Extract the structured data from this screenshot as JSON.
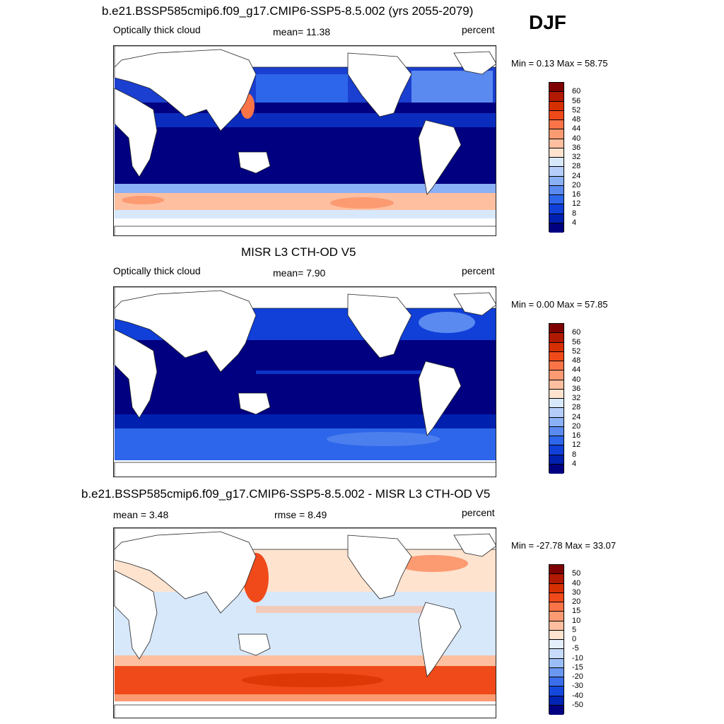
{
  "season": "DJF",
  "panels": [
    {
      "title": "b.e21.BSSP585cmip6.f09_g17.CMIP6-SSP5-8.5.002 (yrs 2055-2079)",
      "left_label": "Optically thick cloud",
      "center_label": "mean=  11.38",
      "right_label": "percent",
      "minmax": "Min =   0.13 Max =  58.75",
      "colorbar_ticks": [
        "60",
        "56",
        "52",
        "48",
        "44",
        "40",
        "36",
        "32",
        "28",
        "24",
        "20",
        "16",
        "12",
        "8",
        "4"
      ],
      "colorbar_colors": [
        "#7f0000",
        "#b11a00",
        "#d73000",
        "#f04a1a",
        "#fb7448",
        "#fc9a72",
        "#fdbf9f",
        "#fee3cf",
        "#d7e8fb",
        "#b4cdf9",
        "#8ab0f5",
        "#5a8af0",
        "#2d66ea",
        "#1040d8",
        "#0020b0",
        "#000080"
      ]
    },
    {
      "title": "MISR L3 CTH-OD V5",
      "left_label": "Optically thick cloud",
      "center_label": "mean=   7.90",
      "right_label": "percent",
      "minmax": "Min =   0.00 Max =  57.85",
      "colorbar_ticks": [
        "60",
        "56",
        "52",
        "48",
        "44",
        "40",
        "36",
        "32",
        "28",
        "24",
        "20",
        "16",
        "12",
        "8",
        "4"
      ],
      "colorbar_colors": [
        "#7f0000",
        "#b11a00",
        "#d73000",
        "#f04a1a",
        "#fb7448",
        "#fc9a72",
        "#fdbf9f",
        "#fee3cf",
        "#d7e8fb",
        "#b4cdf9",
        "#8ab0f5",
        "#5a8af0",
        "#2d66ea",
        "#1040d8",
        "#0020b0",
        "#000080"
      ]
    },
    {
      "title": "b.e21.BSSP585cmip6.f09_g17.CMIP6-SSP5-8.5.002 - MISR L3 CTH-OD V5",
      "left_label": "mean =   3.48",
      "center_label": "rmse =   8.49",
      "right_label": "percent",
      "minmax": "Min = -27.78 Max =  33.07",
      "colorbar_ticks": [
        "50",
        "40",
        "30",
        "20",
        "15",
        "10",
        "5",
        "0",
        "-5",
        "-10",
        "-15",
        "-20",
        "-30",
        "-40",
        "-50"
      ],
      "colorbar_colors": [
        "#7f0000",
        "#b11a00",
        "#d73000",
        "#f04a1a",
        "#fb7448",
        "#fc9a72",
        "#fdbf9f",
        "#fee3cf",
        "#e4eefb",
        "#c7dbfa",
        "#9bbdf6",
        "#6a97f1",
        "#3a6eeb",
        "#1448dd",
        "#0024b4",
        "#000080"
      ]
    }
  ],
  "colors": {
    "ocean_deep": "#000080",
    "ocean_blue": "#1b3fd0",
    "land": "#ffffff",
    "diff_neutral": "#d7e8fb",
    "diff_positive": "#f04a1a"
  }
}
